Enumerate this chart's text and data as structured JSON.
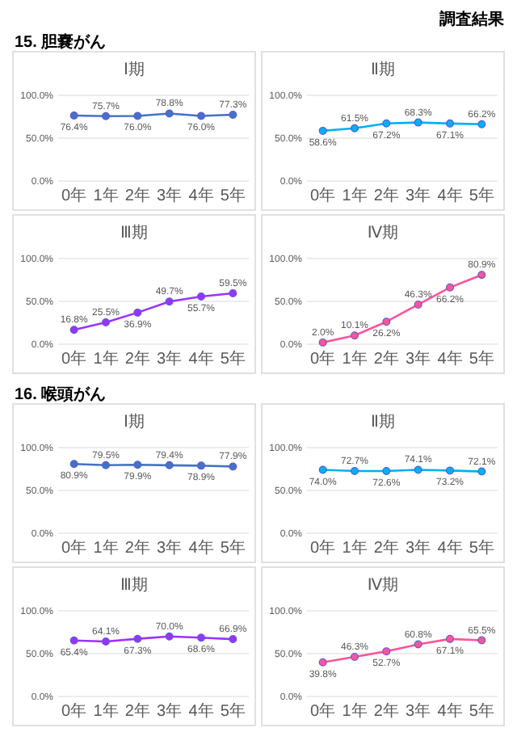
{
  "chart_data": [
    {
      "type": "line",
      "title": "Ⅰ期",
      "annotations": [
        "調査結果",
        "15. 胆嚢がん"
      ],
      "categories": [
        "0年",
        "1年",
        "2年",
        "3年",
        "4年",
        "5年"
      ],
      "values": [
        76.4,
        75.7,
        76.0,
        78.8,
        76.0,
        77.3
      ],
      "value_labels": [
        "76.4%",
        "75.7%",
        "76.0%",
        "78.8%",
        "76.0%",
        "77.3%"
      ],
      "color": "#4472c4",
      "marker": "circle",
      "ylim": [
        0,
        100
      ],
      "yticks": [
        {
          "value": 0,
          "label": "0.0%"
        },
        {
          "value": 50,
          "label": "50.0%"
        },
        {
          "value": 100,
          "label": "100.0%"
        }
      ],
      "grid": "y"
    },
    {
      "type": "line",
      "title": "Ⅱ期",
      "categories": [
        "0年",
        "1年",
        "2年",
        "3年",
        "4年",
        "5年"
      ],
      "values": [
        58.6,
        61.5,
        67.2,
        68.3,
        67.1,
        66.2
      ],
      "value_labels": [
        "58.6%",
        "61.5%",
        "67.2%",
        "68.3%",
        "67.1%",
        "66.2%"
      ],
      "color": "#00b0f0",
      "marker": "circle",
      "ylim": [
        0,
        100
      ],
      "yticks": [
        {
          "value": 0,
          "label": "0.0%"
        },
        {
          "value": 50,
          "label": "50.0%"
        },
        {
          "value": 100,
          "label": "100.0%"
        }
      ],
      "grid": "y"
    },
    {
      "type": "line",
      "title": "Ⅲ期",
      "categories": [
        "0年",
        "1年",
        "2年",
        "3年",
        "4年",
        "5年"
      ],
      "values": [
        16.8,
        25.5,
        36.9,
        49.7,
        55.7,
        59.5
      ],
      "value_labels": [
        "16.8%",
        "25.5%",
        "36.9%",
        "49.7%",
        "55.7%",
        "59.5%"
      ],
      "color": "#9933ff",
      "marker": "circle",
      "ylim": [
        0,
        100
      ],
      "yticks": [
        {
          "value": 0,
          "label": "0.0%"
        },
        {
          "value": 50,
          "label": "50.0%"
        },
        {
          "value": 100,
          "label": "100.0%"
        }
      ],
      "grid": "y"
    },
    {
      "type": "line",
      "title": "Ⅳ期",
      "categories": [
        "0年",
        "1年",
        "2年",
        "3年",
        "4年",
        "5年"
      ],
      "values": [
        2.0,
        10.1,
        26.2,
        46.3,
        66.2,
        80.9
      ],
      "value_labels": [
        "2.0%",
        "10.1%",
        "26.2%",
        "46.3%",
        "66.2%",
        "80.9%"
      ],
      "color": "#ff5599",
      "marker": "circle",
      "ylim": [
        0,
        100
      ],
      "yticks": [
        {
          "value": 0,
          "label": "0.0%"
        },
        {
          "value": 50,
          "label": "50.0%"
        },
        {
          "value": 100,
          "label": "100.0%"
        }
      ],
      "grid": "y"
    },
    {
      "type": "line",
      "title": "Ⅰ期",
      "annotations": [
        "16. 喉頭がん"
      ],
      "categories": [
        "0年",
        "1年",
        "2年",
        "3年",
        "4年",
        "5年"
      ],
      "values": [
        80.9,
        79.5,
        79.9,
        79.4,
        78.9,
        77.9
      ],
      "value_labels": [
        "80.9%",
        "79.5%",
        "79.9%",
        "79.4%",
        "78.9%",
        "77.9%"
      ],
      "color": "#4472c4",
      "marker": "circle",
      "ylim": [
        0,
        100
      ],
      "yticks": [
        {
          "value": 0,
          "label": "0.0%"
        },
        {
          "value": 50,
          "label": "50.0%"
        },
        {
          "value": 100,
          "label": "100.0%"
        }
      ],
      "grid": "y"
    },
    {
      "type": "line",
      "title": "Ⅱ期",
      "categories": [
        "0年",
        "1年",
        "2年",
        "3年",
        "4年",
        "5年"
      ],
      "values": [
        74.0,
        72.7,
        72.6,
        74.1,
        73.2,
        72.1
      ],
      "value_labels": [
        "74.0%",
        "72.7%",
        "72.6%",
        "74.1%",
        "73.2%",
        "72.1%"
      ],
      "color": "#00b0f0",
      "marker": "circle",
      "ylim": [
        0,
        100
      ],
      "yticks": [
        {
          "value": 0,
          "label": "0.0%"
        },
        {
          "value": 50,
          "label": "50.0%"
        },
        {
          "value": 100,
          "label": "100.0%"
        }
      ],
      "grid": "y"
    },
    {
      "type": "line",
      "title": "Ⅲ期",
      "categories": [
        "0年",
        "1年",
        "2年",
        "3年",
        "4年",
        "5年"
      ],
      "values": [
        65.4,
        64.1,
        67.3,
        70.0,
        68.6,
        66.9
      ],
      "value_labels": [
        "65.4%",
        "64.1%",
        "67.3%",
        "70.0%",
        "68.6%",
        "66.9%"
      ],
      "color": "#9933ff",
      "marker": "circle",
      "ylim": [
        0,
        100
      ],
      "yticks": [
        {
          "value": 0,
          "label": "0.0%"
        },
        {
          "value": 50,
          "label": "50.0%"
        },
        {
          "value": 100,
          "label": "100.0%"
        }
      ],
      "grid": "y"
    },
    {
      "type": "line",
      "title": "Ⅳ期",
      "categories": [
        "0年",
        "1年",
        "2年",
        "3年",
        "4年",
        "5年"
      ],
      "values": [
        39.8,
        46.3,
        52.7,
        60.8,
        67.1,
        65.5
      ],
      "value_labels": [
        "39.8%",
        "46.3%",
        "52.7%",
        "60.8%",
        "67.1%",
        "65.5%"
      ],
      "color": "#ff5599",
      "marker": "circle",
      "ylim": [
        0,
        100
      ],
      "yticks": [
        {
          "value": 0,
          "label": "0.0%"
        },
        {
          "value": 50,
          "label": "50.0%"
        },
        {
          "value": 100,
          "label": "100.0%"
        }
      ],
      "grid": "y"
    }
  ]
}
